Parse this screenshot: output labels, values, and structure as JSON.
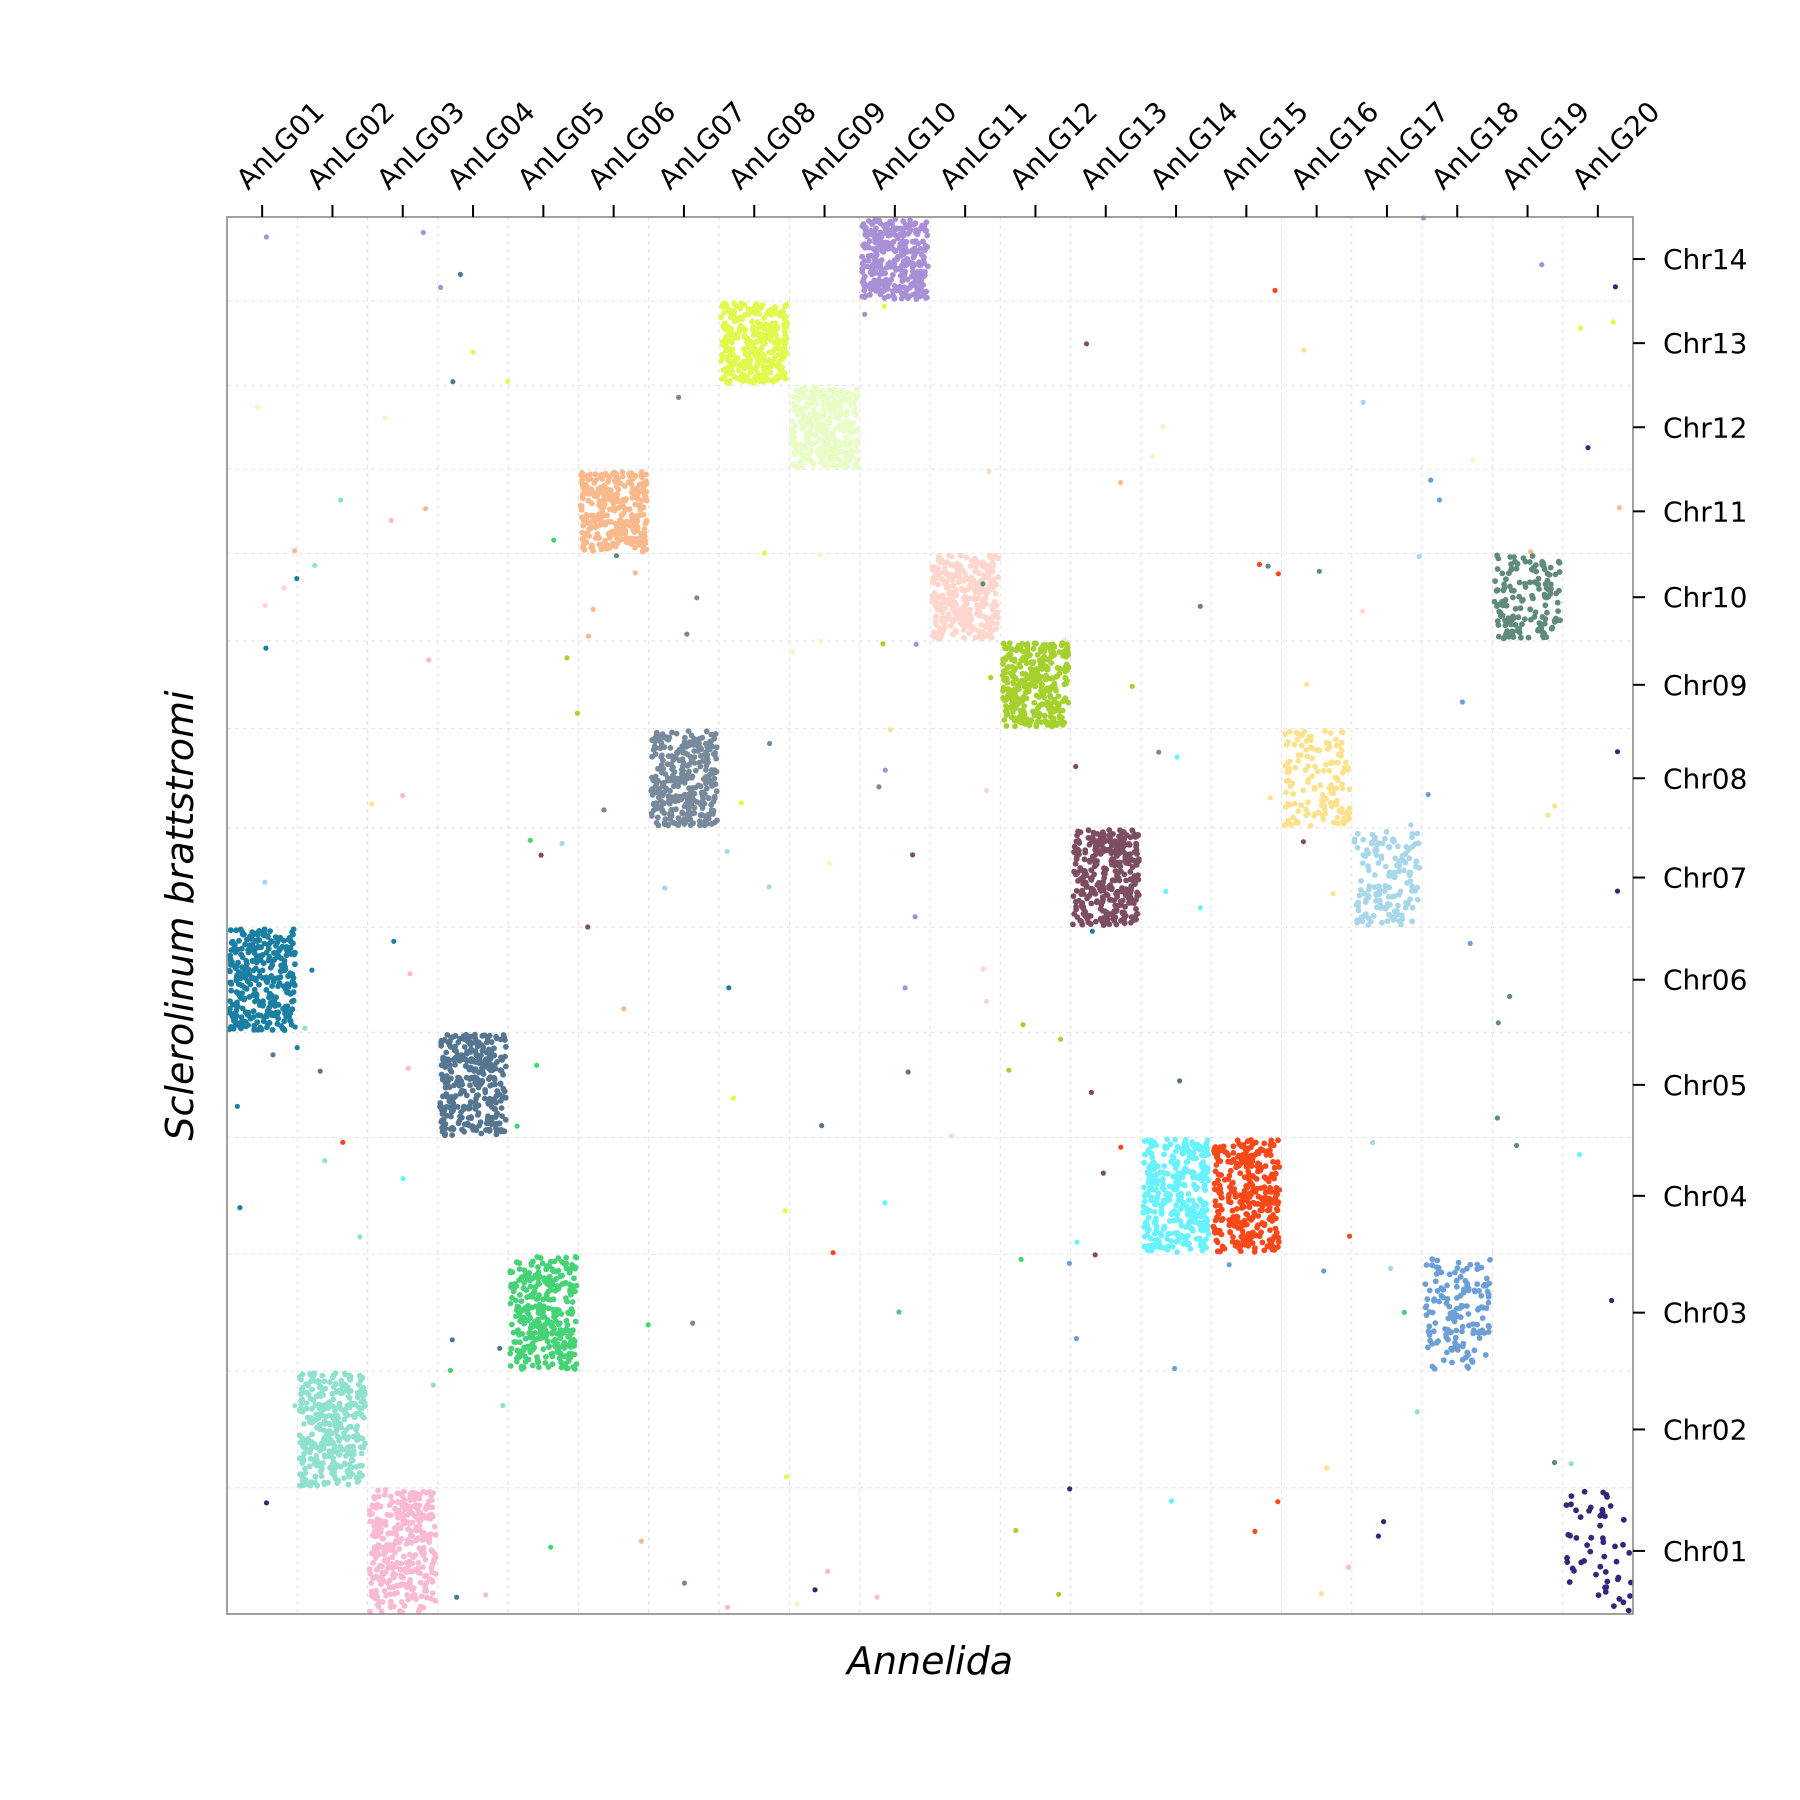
{
  "chart_data": {
    "type": "scatter",
    "xlabel": "Annelida",
    "ylabel": "Sclerolinum brattstromi",
    "x_categories": [
      "AnLG01",
      "AnLG02",
      "AnLG03",
      "AnLG04",
      "AnLG05",
      "AnLG06",
      "AnLG07",
      "AnLG08",
      "AnLG09",
      "AnLG10",
      "AnLG11",
      "AnLG12",
      "AnLG13",
      "AnLG14",
      "AnLG15",
      "AnLG16",
      "AnLG17",
      "AnLG18",
      "AnLG19",
      "AnLG20"
    ],
    "y_categories": [
      "Chr01",
      "Chr02",
      "Chr03",
      "Chr04",
      "Chr05",
      "Chr06",
      "Chr07",
      "Chr08",
      "Chr09",
      "Chr10",
      "Chr11",
      "Chr12",
      "Chr13",
      "Chr14"
    ],
    "x_axis_position": "top",
    "y_axis_position": "right",
    "grid": true,
    "blocks": [
      {
        "x_category": "AnLG01",
        "y_category": "Chr06",
        "color": "#1a7fa3",
        "density": "high"
      },
      {
        "x_category": "AnLG02",
        "y_category": "Chr02",
        "color": "#8ee0cf",
        "density": "high"
      },
      {
        "x_category": "AnLG03",
        "y_category": "Chr01",
        "color": "#f9b9d3",
        "density": "high"
      },
      {
        "x_category": "AnLG04",
        "y_category": "Chr05",
        "color": "#557691",
        "density": "high"
      },
      {
        "x_category": "AnLG05",
        "y_category": "Chr03",
        "color": "#46d375",
        "density": "high"
      },
      {
        "x_category": "AnLG06",
        "y_category": "Chr11",
        "color": "#f9b98a",
        "density": "high"
      },
      {
        "x_category": "AnLG07",
        "y_category": "Chr08",
        "color": "#768a9c",
        "density": "high"
      },
      {
        "x_category": "AnLG08",
        "y_category": "Chr13",
        "color": "#e1f94c",
        "density": "high"
      },
      {
        "x_category": "AnLG09",
        "y_category": "Chr12",
        "color": "#e8fdc6",
        "density": "high"
      },
      {
        "x_category": "AnLG10",
        "y_category": "Chr14",
        "color": "#a88fd6",
        "density": "high"
      },
      {
        "x_category": "AnLG11",
        "y_category": "Chr10",
        "color": "#fed6cc",
        "density": "high"
      },
      {
        "x_category": "AnLG12",
        "y_category": "Chr09",
        "color": "#a4d12c",
        "density": "high"
      },
      {
        "x_category": "AnLG13",
        "y_category": "Chr07",
        "color": "#7d4d61",
        "density": "high"
      },
      {
        "x_category": "AnLG14",
        "y_category": "Chr04",
        "color": "#67f2fd",
        "density": "high"
      },
      {
        "x_category": "AnLG15",
        "y_category": "Chr04",
        "color": "#f9481a",
        "density": "high"
      },
      {
        "x_category": "AnLG16",
        "y_category": "Chr08",
        "color": "#fde28d",
        "density": "medium"
      },
      {
        "x_category": "AnLG17",
        "y_category": "Chr07",
        "color": "#a8d7ea",
        "density": "medium"
      },
      {
        "x_category": "AnLG18",
        "y_category": "Chr03",
        "color": "#6c9fd6",
        "density": "medium"
      },
      {
        "x_category": "AnLG19",
        "y_category": "Chr10",
        "color": "#608a7b",
        "density": "medium"
      },
      {
        "x_category": "AnLG20",
        "y_category": "Chr01",
        "color": "#2f2a78",
        "density": "low"
      }
    ]
  }
}
